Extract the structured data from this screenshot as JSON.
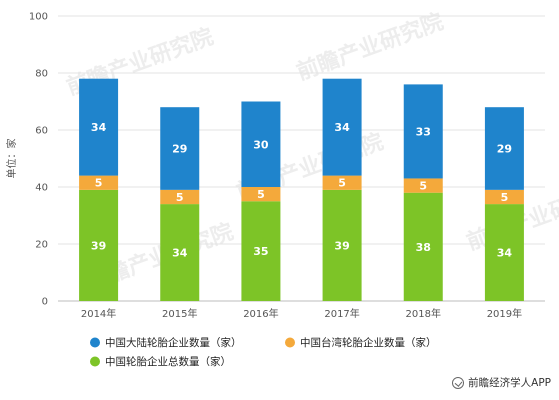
{
  "chart_data": {
    "type": "bar",
    "stacked": true,
    "categories": [
      "2014年",
      "2015年",
      "2016年",
      "2017年",
      "2018年",
      "2019年"
    ],
    "series": [
      {
        "name": "中国轮胎企业总数量（家）",
        "color": "#7dc427",
        "values": [
          39,
          34,
          35,
          39,
          38,
          34
        ]
      },
      {
        "name": "中国台湾轮胎企业数量（家）",
        "color": "#f4a93b",
        "values": [
          5,
          5,
          5,
          5,
          5,
          5
        ]
      },
      {
        "name": "中国大陆轮胎企业数量（家）",
        "color": "#1f84cc",
        "values": [
          34,
          29,
          30,
          34,
          33,
          29
        ]
      }
    ],
    "legend_order": [
      2,
      1,
      0
    ],
    "ylabel": "单位：家",
    "ylim": [
      0,
      100
    ],
    "yticks": [
      0,
      20,
      40,
      60,
      80,
      100
    ],
    "grid": true,
    "legend_position": "bottom-left"
  },
  "watermark": "前瞻产业研究院",
  "source": "前瞻经济学人APP"
}
